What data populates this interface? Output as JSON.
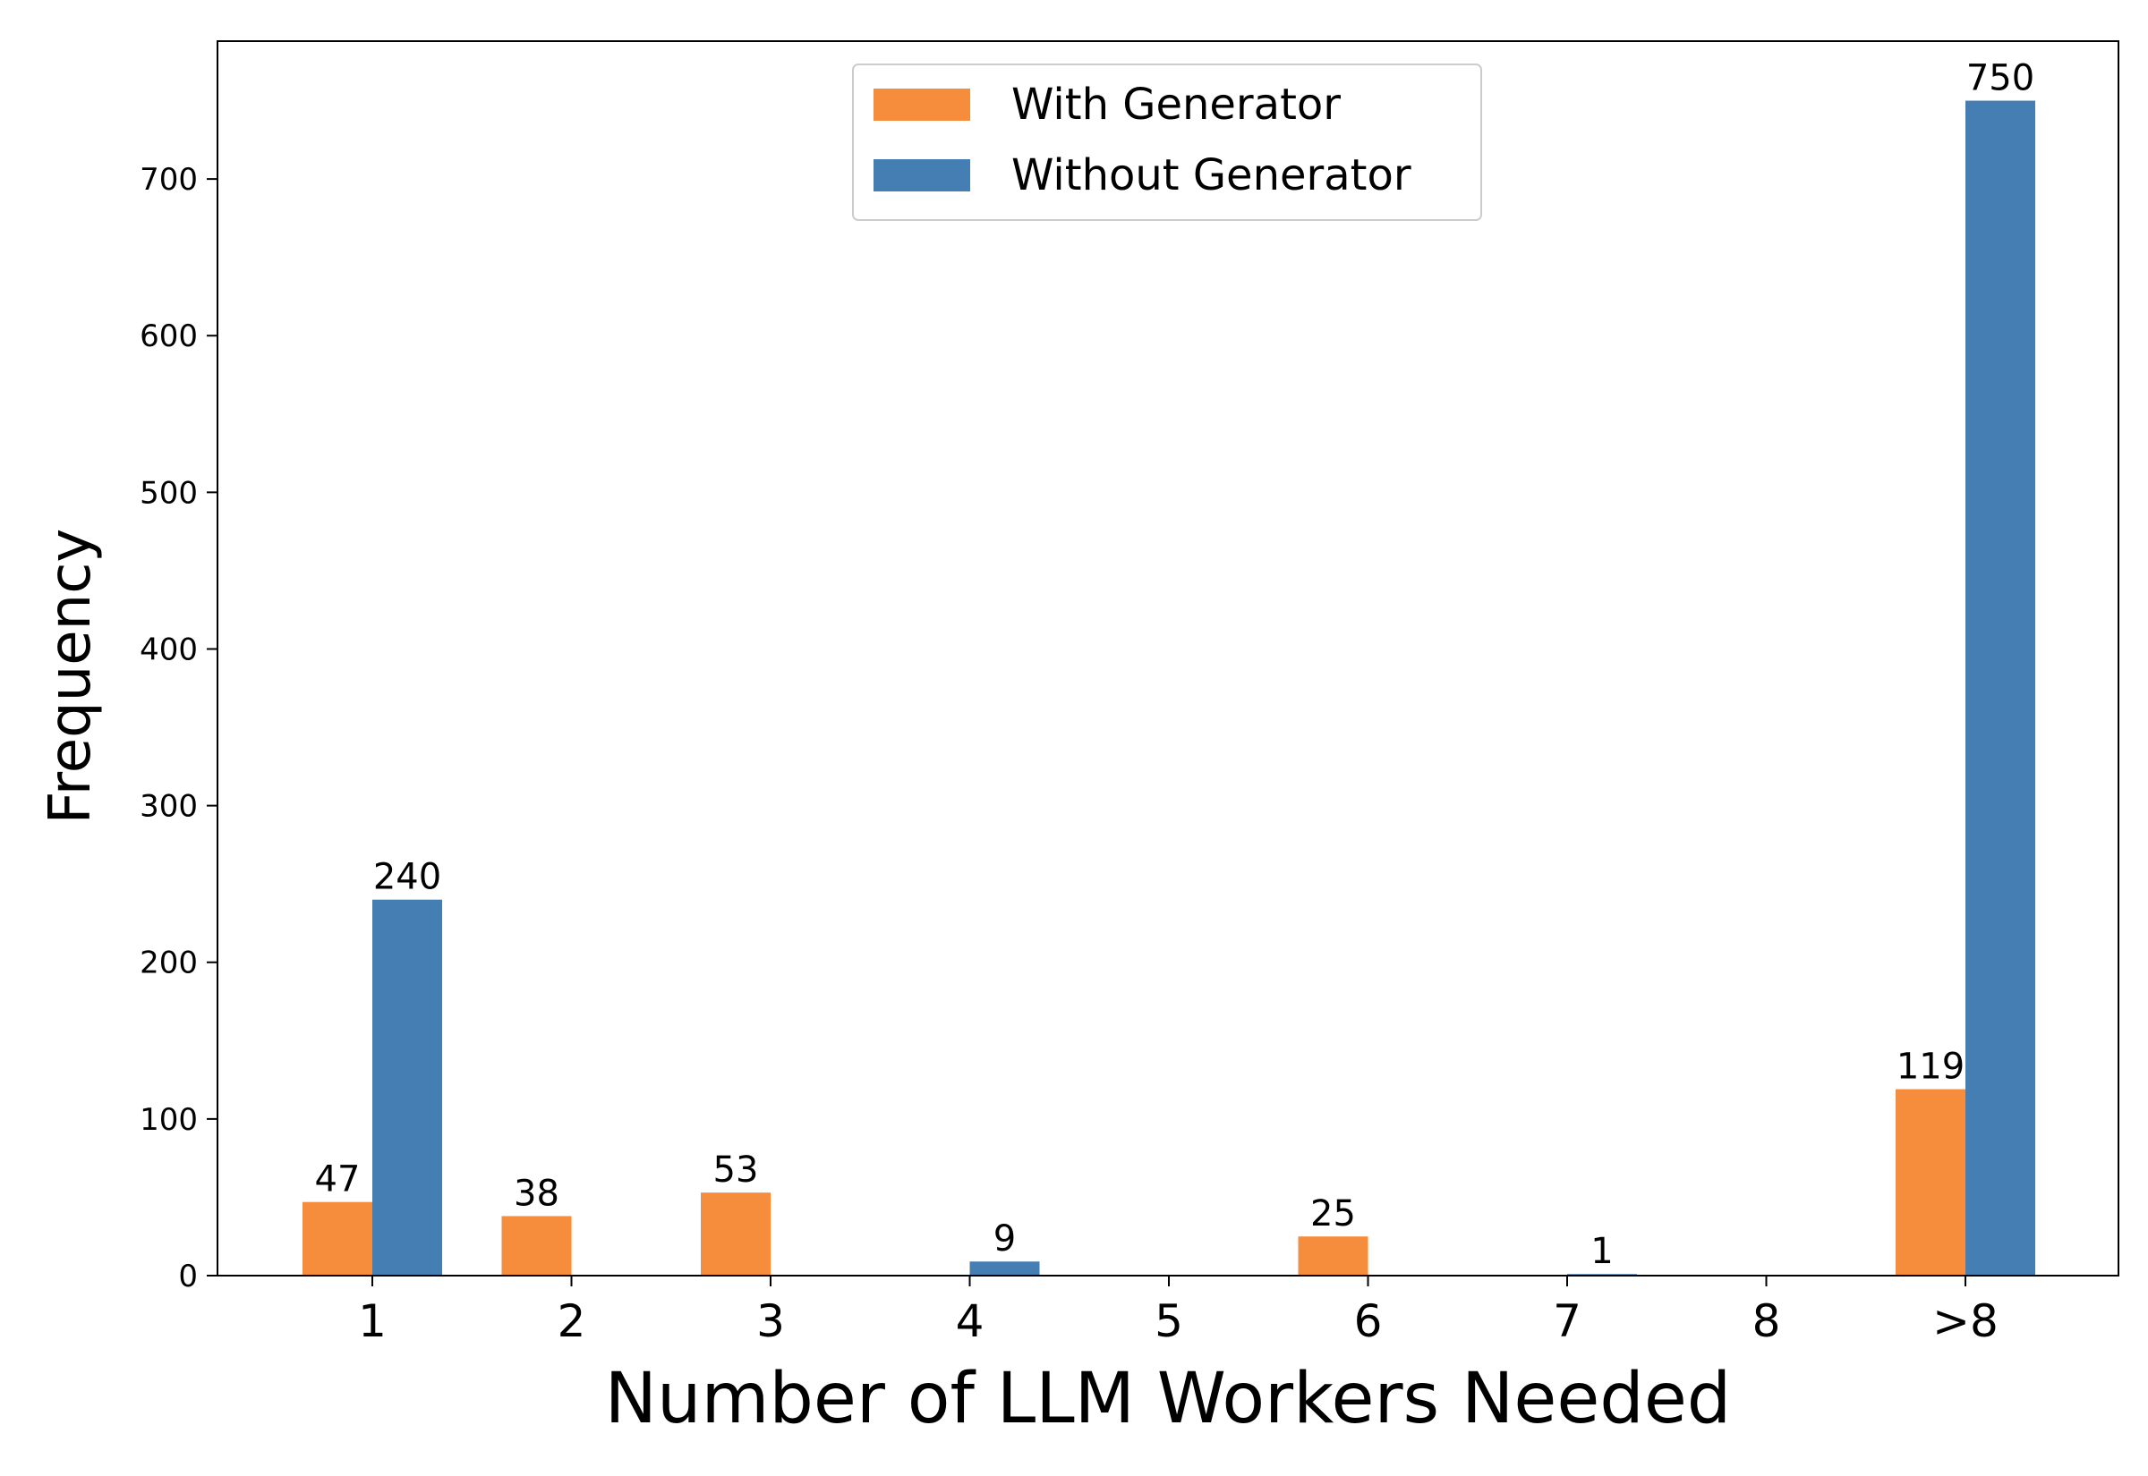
{
  "chart_data": {
    "type": "bar",
    "categories": [
      "1",
      "2",
      "3",
      "4",
      "5",
      "6",
      "7",
      "8",
      ">8"
    ],
    "series": [
      {
        "name": "With Generator",
        "color": "#F58D3D",
        "values": [
          47,
          38,
          53,
          0,
          0,
          25,
          0,
          0,
          119
        ]
      },
      {
        "name": "Without Generator",
        "color": "#447EB3",
        "values": [
          240,
          0,
          0,
          9,
          0,
          0,
          1,
          0,
          750
        ]
      }
    ],
    "xlabel": "Number of LLM Workers Needed",
    "ylabel": "Frequency",
    "ylim": [
      0,
      788
    ],
    "yticks": [
      0,
      100,
      200,
      300,
      400,
      500,
      600,
      700
    ],
    "grid": false,
    "legend_position": "top-center"
  }
}
